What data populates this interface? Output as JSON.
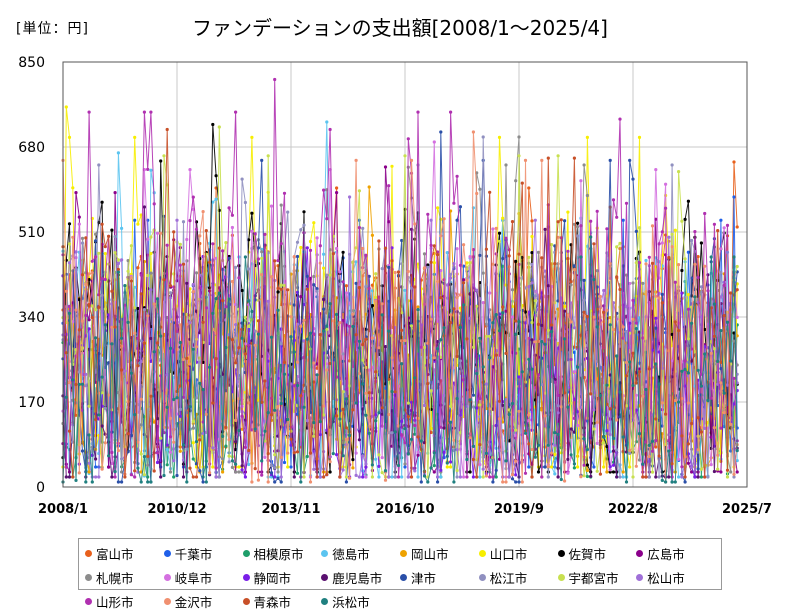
{
  "unit_label": "[単位：円]",
  "chart_data": {
    "type": "line",
    "title": "ファンデーションの支出額[2008/1～2025/4]",
    "x_range": [
      "2008-01",
      "2025-07"
    ],
    "x_ticks": [
      "2008/1",
      "2010/12",
      "2013/11",
      "2016/10",
      "2019/9",
      "2022/8",
      "2025/7"
    ],
    "y_ticks": [
      0,
      170,
      340,
      510,
      680,
      850
    ],
    "ylim": [
      0,
      850
    ],
    "grid": true,
    "legend_position": "bottom",
    "series": [
      {
        "name": "富山市",
        "color": "#e8601c",
        "min": 80,
        "max": 650,
        "peak_month": "2025-03"
      },
      {
        "name": "千葉市",
        "color": "#1f5fe8",
        "min": 40,
        "max": 580,
        "peak_month": "2025-03"
      },
      {
        "name": "相模原市",
        "color": "#1e9e6a",
        "min": 20,
        "max": 480,
        "peak_month": "2024-09"
      },
      {
        "name": "徳島市",
        "color": "#5bc4f0",
        "min": 20,
        "max": 730,
        "peak_month": "2014-10"
      },
      {
        "name": "岡山市",
        "color": "#eea200",
        "min": 30,
        "max": 600,
        "peak_month": "2015-11"
      },
      {
        "name": "山口市",
        "color": "#f7ee00",
        "min": 40,
        "max": 760,
        "peak_month": "2008-02"
      },
      {
        "name": "佐賀市",
        "color": "#000000",
        "min": 30,
        "max": 725,
        "peak_month": "2011-11"
      },
      {
        "name": "広島市",
        "color": "#8b008b",
        "min": 30,
        "max": 640,
        "peak_month": "2016-04"
      },
      {
        "name": "札幌市",
        "color": "#8c8c8c",
        "min": 30,
        "max": 700,
        "peak_month": "2019-09"
      },
      {
        "name": "岐阜市",
        "color": "#d470e0",
        "min": 20,
        "max": 690,
        "peak_month": "2017-07"
      },
      {
        "name": "静岡市",
        "color": "#7a1ee8",
        "min": 20,
        "max": 520,
        "peak_month": "2020-06"
      },
      {
        "name": "鹿児島市",
        "color": "#5a1070",
        "min": 20,
        "max": 560,
        "peak_month": "2010-02"
      },
      {
        "name": "津市",
        "color": "#2a4fa8",
        "min": 10,
        "max": 710,
        "peak_month": "2017-09"
      },
      {
        "name": "松江市",
        "color": "#9090c0",
        "min": 20,
        "max": 700,
        "peak_month": "2018-10"
      },
      {
        "name": "宇都宮市",
        "color": "#c8e050",
        "min": 20,
        "max": 720,
        "peak_month": "2012-01"
      },
      {
        "name": "松山市",
        "color": "#a070d8",
        "min": 20,
        "max": 580,
        "peak_month": "2015-05"
      },
      {
        "name": "山形市",
        "color": "#b030b0",
        "min": 20,
        "max": 815,
        "peak_month": "2013-06"
      },
      {
        "name": "金沢市",
        "color": "#f09070",
        "min": 10,
        "max": 710,
        "peak_month": "2018-07"
      },
      {
        "name": "青森市",
        "color": "#c85028",
        "min": 20,
        "max": 715,
        "peak_month": "2010-09"
      },
      {
        "name": "浜松市",
        "color": "#208080",
        "min": 10,
        "max": 500,
        "peak_month": "2021-07"
      }
    ]
  }
}
